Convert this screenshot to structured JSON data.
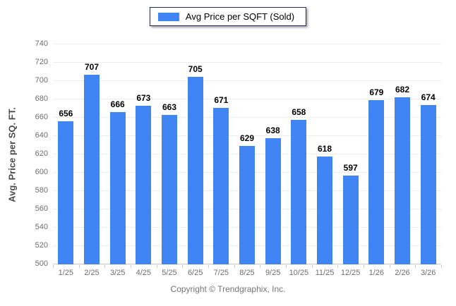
{
  "legend": {
    "label": "Avg Price per SQFT (Sold)",
    "swatch_color": "#4184f4"
  },
  "y_axis": {
    "title": "Avg. Price per SQ. FT."
  },
  "footer": {
    "copyright": "Copyright © Trendgraphix, Inc."
  },
  "colors": {
    "bar": "#4184f4",
    "gridline": "#ededed",
    "axis": "#c9c9c9",
    "tick_label": "#6e6e6e",
    "value_label": "#000000",
    "copyright_text": "#757575",
    "legend_border": "#26264f"
  },
  "chart_data": {
    "type": "bar",
    "title": "",
    "xlabel": "",
    "ylabel": "Avg. Price per SQ. FT.",
    "categories": [
      "1/25",
      "2/25",
      "3/25",
      "4/25",
      "5/25",
      "6/25",
      "7/25",
      "8/25",
      "9/25",
      "10/25",
      "11/25",
      "12/25",
      "1/26",
      "2/26",
      "3/26"
    ],
    "series": [
      {
        "name": "Avg Price per SQFT (Sold)",
        "values": [
          656,
          707,
          666,
          673,
          663,
          705,
          671,
          629,
          638,
          658,
          618,
          597,
          679,
          682,
          674
        ]
      }
    ],
    "ylim": [
      500,
      740
    ],
    "ytick_step": 20,
    "yticks": [
      500,
      520,
      540,
      560,
      580,
      600,
      620,
      640,
      660,
      680,
      700,
      720,
      740
    ],
    "grid": "horizontal",
    "legend_position": "top-center",
    "value_labels": "above-bars"
  }
}
